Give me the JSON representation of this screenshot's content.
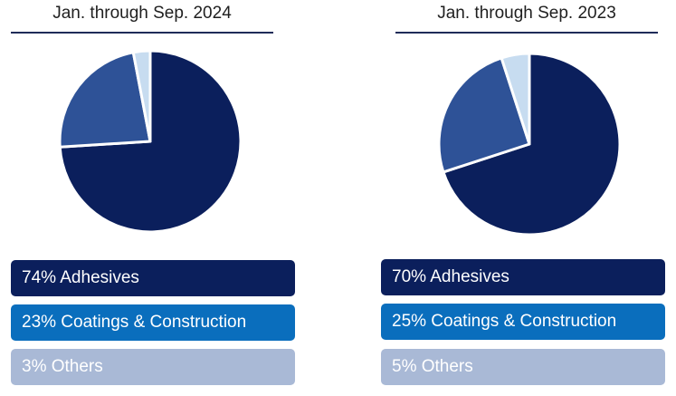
{
  "colors": {
    "adhesives": "#0b1f5c",
    "coatings": "#2e5297",
    "others": "#c7dcf0",
    "legend_adhesives": "#0b1f5c",
    "legend_coatings": "#0a6ebd",
    "legend_others": "#a9b9d6",
    "divider": "#1f2c59"
  },
  "chart_data": [
    {
      "type": "pie",
      "title": "Jan. through Sep. 2024",
      "slices": [
        {
          "label": "Adhesives",
          "value": 74,
          "text": "74% Adhesives",
          "color": "#0b1f5c",
          "legend_color": "#0b1f5c"
        },
        {
          "label": "Coatings & Construction",
          "value": 23,
          "text": "23% Coatings & Construction",
          "color": "#2e5297",
          "legend_color": "#0a6ebd"
        },
        {
          "label": "Others",
          "value": 3,
          "text": "3% Others",
          "color": "#c7dcf0",
          "legend_color": "#a9b9d6"
        }
      ]
    },
    {
      "type": "pie",
      "title": "Jan. through Sep. 2023",
      "slices": [
        {
          "label": "Adhesives",
          "value": 70,
          "text": "70% Adhesives",
          "color": "#0b1f5c",
          "legend_color": "#0b1f5c"
        },
        {
          "label": "Coatings & Construction",
          "value": 25,
          "text": "25% Coatings & Construction",
          "color": "#2e5297",
          "legend_color": "#0a6ebd"
        },
        {
          "label": "Others",
          "value": 5,
          "text": "5% Others",
          "color": "#c7dcf0",
          "legend_color": "#a9b9d6"
        }
      ]
    }
  ]
}
